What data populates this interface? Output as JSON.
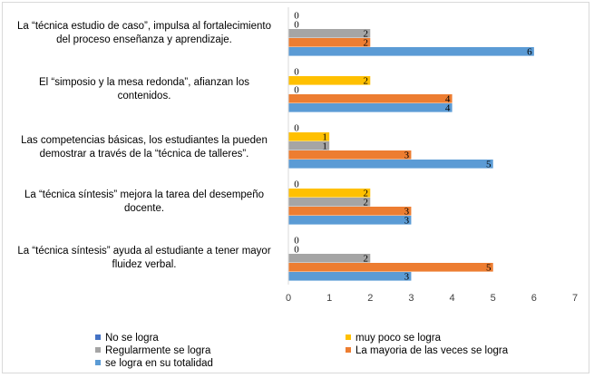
{
  "chart_data": {
    "type": "bar",
    "orientation": "horizontal",
    "categories": [
      "La “técnica estudio de caso”, impulsa al fortalecimiento del proceso enseñanza y aprendizaje.",
      "El “simposio y la mesa redonda”, afianzan los contenidos.",
      "Las competencias básicas, los estudiantes la pueden demostrar a través de la “técnica de talleres”.",
      "La “técnica síntesis” mejora la tarea del desempeño docente.",
      "La “técnica síntesis” ayuda al estudiante a tener mayor fluidez verbal."
    ],
    "series": [
      {
        "name": "No se logra",
        "color": "#4472c4",
        "values": [
          0,
          0,
          0,
          0,
          0
        ]
      },
      {
        "name": "muy poco se logra",
        "color": "#ffc000",
        "values": [
          0,
          2,
          1,
          2,
          0
        ]
      },
      {
        "name": "Regularmente se logra",
        "color": "#a5a5a5",
        "values": [
          2,
          0,
          1,
          2,
          2
        ]
      },
      {
        "name": "La mayoria de las veces se logra",
        "color": "#ed7d31",
        "values": [
          2,
          4,
          3,
          3,
          5
        ]
      },
      {
        "name": "se logra en su totalidad",
        "color": "#5b9bd5",
        "values": [
          6,
          4,
          5,
          3,
          3
        ]
      }
    ],
    "xlim": [
      0,
      7
    ],
    "xticks": [
      0,
      1,
      2,
      3,
      4,
      5,
      6,
      7
    ],
    "data_labels": true,
    "grid": false,
    "legend_position": "bottom"
  }
}
